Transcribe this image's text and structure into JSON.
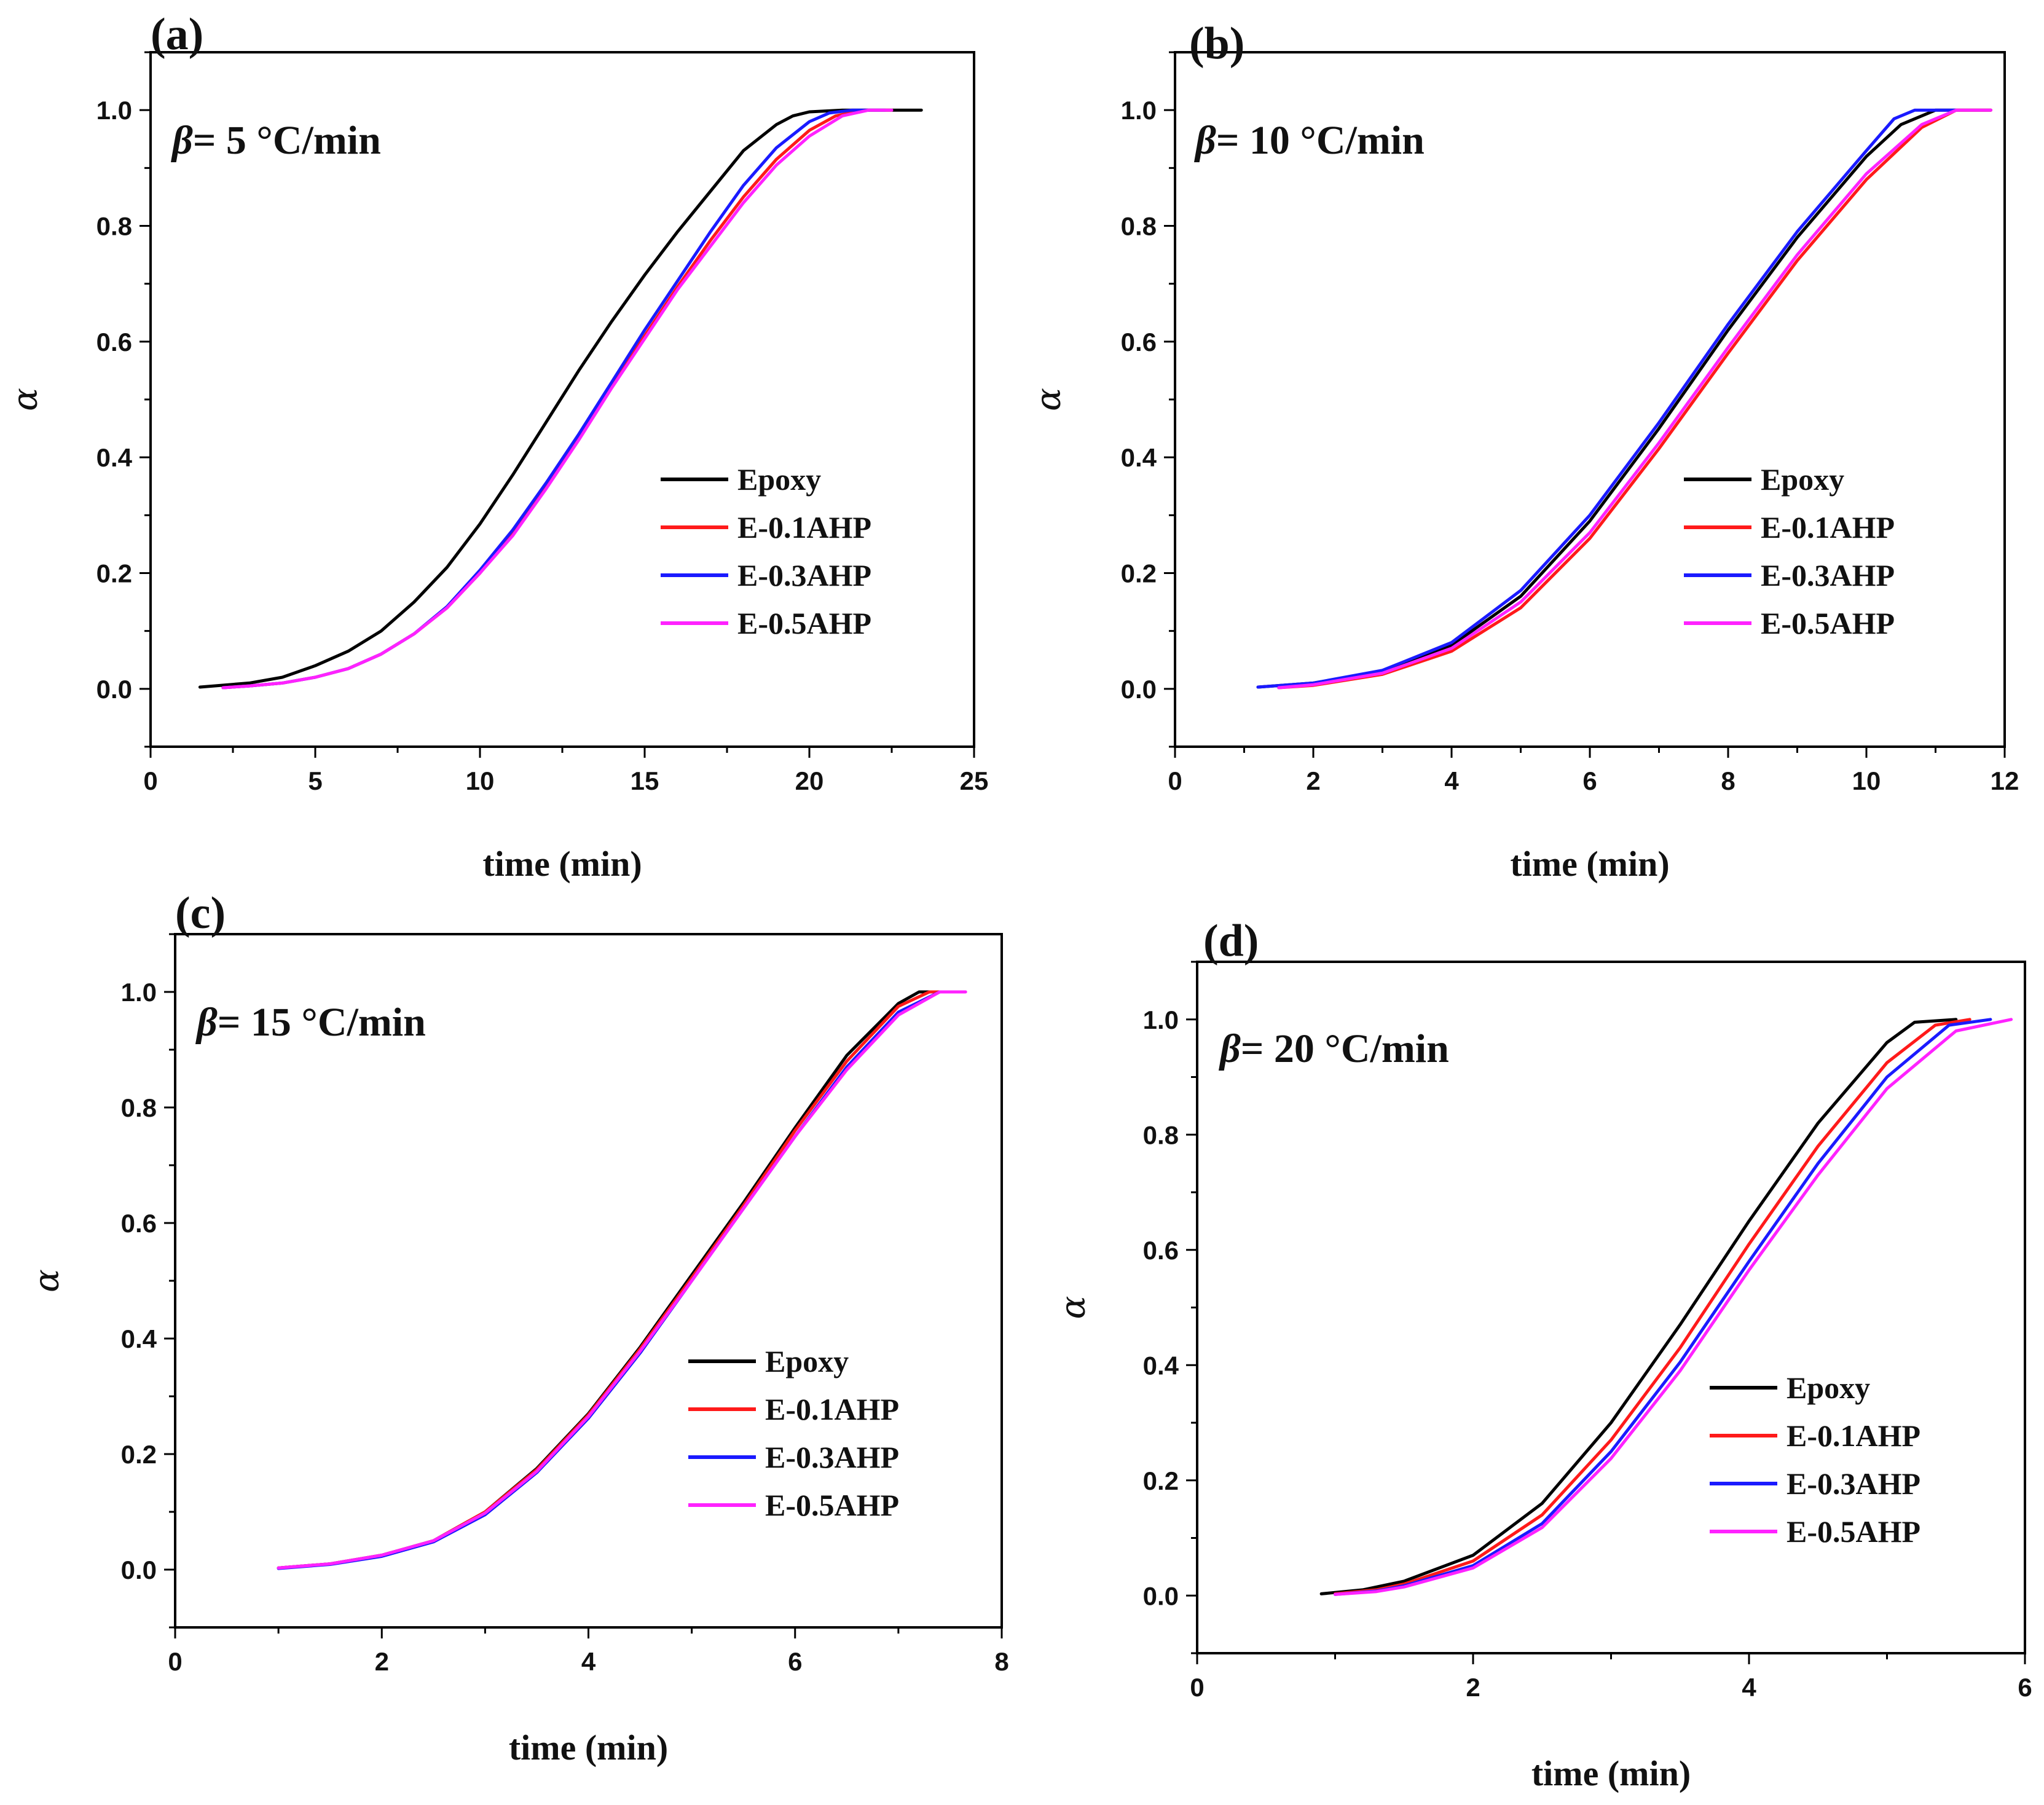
{
  "chart_data": [
    {
      "type": "line",
      "panel_label": "(a)",
      "beta_symbol": "β",
      "beta_text": "= 5 °C/min",
      "xlabel": "time (min)",
      "ylabel": "α",
      "xlim": [
        0,
        25
      ],
      "ylim": [
        -0.1,
        1.1
      ],
      "xticks": [
        0,
        5,
        10,
        15,
        20,
        25
      ],
      "yticks": [
        0.0,
        0.2,
        0.4,
        0.6,
        0.8,
        1.0
      ],
      "legend_position": "center-right",
      "series": [
        {
          "name": "Epoxy",
          "color": "#000000",
          "x": [
            1.5,
            3,
            4,
            5,
            6,
            7,
            8,
            9,
            10,
            11,
            12,
            13,
            14,
            15,
            16,
            17,
            18,
            19,
            19.5,
            20,
            21,
            22,
            23.4
          ],
          "y": [
            0.003,
            0.01,
            0.02,
            0.04,
            0.065,
            0.1,
            0.15,
            0.21,
            0.285,
            0.37,
            0.46,
            0.55,
            0.635,
            0.715,
            0.79,
            0.86,
            0.93,
            0.975,
            0.99,
            0.997,
            1.0,
            1.0,
            1.0
          ]
        },
        {
          "name": "E-0.1AHP",
          "color": "#ff1a1a",
          "x": [
            2.2,
            3,
            4,
            5,
            6,
            7,
            8,
            9,
            10,
            11,
            12,
            13,
            14,
            15,
            16,
            17,
            18,
            19,
            20,
            20.8,
            21.6,
            22.5
          ],
          "y": [
            0.002,
            0.005,
            0.01,
            0.02,
            0.035,
            0.06,
            0.095,
            0.14,
            0.2,
            0.27,
            0.35,
            0.435,
            0.525,
            0.61,
            0.695,
            0.775,
            0.85,
            0.915,
            0.965,
            0.99,
            1.0,
            1.0
          ]
        },
        {
          "name": "E-0.3AHP",
          "color": "#1a1aff",
          "x": [
            2.2,
            3,
            4,
            5,
            6,
            7,
            8,
            9,
            10,
            11,
            12,
            13,
            14,
            15,
            16,
            17,
            18,
            19,
            20,
            20.6,
            21.3,
            22.3
          ],
          "y": [
            0.002,
            0.005,
            0.01,
            0.02,
            0.035,
            0.06,
            0.095,
            0.142,
            0.205,
            0.275,
            0.355,
            0.44,
            0.53,
            0.62,
            0.705,
            0.79,
            0.87,
            0.935,
            0.98,
            0.995,
            1.0,
            1.0
          ]
        },
        {
          "name": "E-0.5AHP",
          "color": "#ff22ff",
          "x": [
            2.2,
            3,
            4,
            5,
            6,
            7,
            8,
            9,
            10,
            11,
            12,
            13,
            14,
            15,
            16,
            17,
            18,
            19,
            20,
            21,
            21.8,
            22.5
          ],
          "y": [
            0.002,
            0.005,
            0.01,
            0.02,
            0.035,
            0.06,
            0.095,
            0.14,
            0.2,
            0.265,
            0.345,
            0.43,
            0.52,
            0.605,
            0.69,
            0.765,
            0.84,
            0.905,
            0.955,
            0.99,
            1.0,
            1.0
          ]
        }
      ]
    },
    {
      "type": "line",
      "panel_label": "(b)",
      "beta_symbol": "β",
      "beta_text": "= 10 °C/min",
      "xlabel": "time (min)",
      "ylabel": "α",
      "xlim": [
        0,
        12
      ],
      "ylim": [
        -0.1,
        1.1
      ],
      "xticks": [
        0,
        2,
        4,
        6,
        8,
        10,
        12
      ],
      "yticks": [
        0.0,
        0.2,
        0.4,
        0.6,
        0.8,
        1.0
      ],
      "legend_position": "center-right",
      "series": [
        {
          "name": "Epoxy",
          "color": "#000000",
          "x": [
            1.2,
            2,
            3,
            4,
            5,
            6,
            7,
            8,
            9,
            10,
            10.5,
            11,
            11.8
          ],
          "y": [
            0.003,
            0.01,
            0.03,
            0.075,
            0.16,
            0.29,
            0.45,
            0.62,
            0.78,
            0.92,
            0.975,
            1.0,
            1.0
          ]
        },
        {
          "name": "E-0.1AHP",
          "color": "#ff1a1a",
          "x": [
            1.5,
            2,
            3,
            4,
            5,
            6,
            7,
            8,
            9,
            10,
            10.8,
            11.3,
            11.8
          ],
          "y": [
            0.002,
            0.006,
            0.025,
            0.065,
            0.14,
            0.26,
            0.415,
            0.58,
            0.74,
            0.88,
            0.97,
            1.0,
            1.0
          ]
        },
        {
          "name": "E-0.3AHP",
          "color": "#1a1aff",
          "x": [
            1.2,
            2,
            3,
            4,
            5,
            6,
            7,
            8,
            9,
            10,
            10.4,
            10.7,
            11.3
          ],
          "y": [
            0.003,
            0.01,
            0.032,
            0.08,
            0.17,
            0.3,
            0.46,
            0.63,
            0.79,
            0.93,
            0.985,
            1.0,
            1.0
          ]
        },
        {
          "name": "E-0.5AHP",
          "color": "#ff22ff",
          "x": [
            1.5,
            2,
            3,
            4,
            5,
            6,
            7,
            8,
            9,
            10,
            10.8,
            11.3,
            11.8
          ],
          "y": [
            0.002,
            0.007,
            0.027,
            0.07,
            0.15,
            0.27,
            0.425,
            0.59,
            0.75,
            0.89,
            0.975,
            1.0,
            1.0
          ]
        }
      ]
    },
    {
      "type": "line",
      "panel_label": "(c)",
      "beta_symbol": "β",
      "beta_text": "= 15 °C/min",
      "xlabel": "time (min)",
      "ylabel": "α",
      "xlim": [
        0,
        8
      ],
      "ylim": [
        -0.1,
        1.1
      ],
      "xticks": [
        0,
        2,
        4,
        6,
        8
      ],
      "yticks": [
        0.0,
        0.2,
        0.4,
        0.6,
        0.8,
        1.0
      ],
      "legend_position": "center-right",
      "series": [
        {
          "name": "Epoxy",
          "color": "#000000",
          "x": [
            1.0,
            1.5,
            2,
            2.5,
            3,
            3.5,
            4,
            4.5,
            5,
            5.5,
            6,
            6.5,
            7,
            7.2,
            7.6
          ],
          "y": [
            0.003,
            0.01,
            0.025,
            0.05,
            0.1,
            0.175,
            0.27,
            0.385,
            0.51,
            0.635,
            0.765,
            0.89,
            0.98,
            1.0,
            1.0
          ]
        },
        {
          "name": "E-0.1AHP",
          "color": "#ff1a1a",
          "x": [
            1.0,
            1.5,
            2,
            2.5,
            3,
            3.5,
            4,
            4.5,
            5,
            5.5,
            6,
            6.5,
            7,
            7.3,
            7.6
          ],
          "y": [
            0.003,
            0.01,
            0.025,
            0.05,
            0.1,
            0.173,
            0.268,
            0.382,
            0.505,
            0.63,
            0.76,
            0.88,
            0.975,
            1.0,
            1.0
          ]
        },
        {
          "name": "E-0.3AHP",
          "color": "#1a1aff",
          "x": [
            1.0,
            1.5,
            2,
            2.5,
            3,
            3.5,
            4,
            4.5,
            5,
            5.5,
            6,
            6.5,
            7,
            7.4,
            7.6
          ],
          "y": [
            0.002,
            0.009,
            0.023,
            0.048,
            0.095,
            0.168,
            0.262,
            0.375,
            0.5,
            0.625,
            0.75,
            0.87,
            0.965,
            1.0,
            1.0
          ]
        },
        {
          "name": "E-0.5AHP",
          "color": "#ff22ff",
          "x": [
            1.0,
            1.5,
            2,
            2.5,
            3,
            3.5,
            4,
            4.5,
            5,
            5.5,
            6,
            6.5,
            7,
            7.4,
            7.65
          ],
          "y": [
            0.003,
            0.01,
            0.025,
            0.05,
            0.098,
            0.17,
            0.265,
            0.378,
            0.5,
            0.625,
            0.75,
            0.865,
            0.96,
            1.0,
            1.0
          ]
        }
      ]
    },
    {
      "type": "line",
      "panel_label": "(d)",
      "beta_symbol": "β",
      "beta_text": "= 20 °C/min",
      "xlabel": "time (min)",
      "ylabel": "α",
      "xlim": [
        0,
        6
      ],
      "ylim": [
        -0.1,
        1.1
      ],
      "xticks": [
        0,
        2,
        4,
        6
      ],
      "yticks": [
        0.0,
        0.2,
        0.4,
        0.6,
        0.8,
        1.0
      ],
      "legend_position": "center-right",
      "series": [
        {
          "name": "Epoxy",
          "color": "#000000",
          "x": [
            0.9,
            1.2,
            1.5,
            2,
            2.5,
            3,
            3.5,
            4,
            4.5,
            5,
            5.2,
            5.5
          ],
          "y": [
            0.003,
            0.01,
            0.025,
            0.07,
            0.16,
            0.3,
            0.47,
            0.65,
            0.82,
            0.96,
            0.995,
            1.0
          ]
        },
        {
          "name": "E-0.1AHP",
          "color": "#ff1a1a",
          "x": [
            1.0,
            1.3,
            1.5,
            2,
            2.5,
            3,
            3.5,
            4,
            4.5,
            5,
            5.35,
            5.6
          ],
          "y": [
            0.003,
            0.01,
            0.02,
            0.06,
            0.14,
            0.27,
            0.43,
            0.61,
            0.78,
            0.925,
            0.99,
            1.0
          ]
        },
        {
          "name": "E-0.3AHP",
          "color": "#1a1aff",
          "x": [
            1.0,
            1.3,
            1.5,
            2,
            2.5,
            3,
            3.5,
            4,
            4.5,
            5,
            5.45,
            5.75
          ],
          "y": [
            0.002,
            0.008,
            0.017,
            0.052,
            0.125,
            0.25,
            0.405,
            0.58,
            0.75,
            0.9,
            0.99,
            1.0
          ]
        },
        {
          "name": "E-0.5AHP",
          "color": "#ff22ff",
          "x": [
            1.0,
            1.3,
            1.5,
            2,
            2.5,
            3,
            3.5,
            4,
            4.5,
            5,
            5.5,
            5.9
          ],
          "y": [
            0.002,
            0.007,
            0.015,
            0.048,
            0.118,
            0.238,
            0.39,
            0.565,
            0.73,
            0.88,
            0.98,
            1.0
          ]
        }
      ]
    }
  ]
}
